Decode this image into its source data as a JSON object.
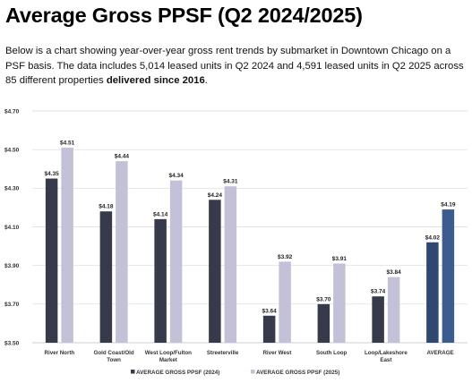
{
  "header": {
    "title": "Average Gross PPSF (Q2 2024/2025)",
    "description_main": "Below is a chart showing year-over-year gross rent trends by submarket in Downtown Chicago on a PSF basis. The data includes 5,014 leased units in Q2 2024 and 4,591 leased units in Q2 2025 across 85 different properties ",
    "description_bold": "delivered since 2016",
    "description_end": "."
  },
  "colors": {
    "series_2024": "#363a4a",
    "series_2025": "#c3c1d8",
    "average_2024": "#2e4870",
    "average_2025": "#3c5b8e",
    "gridline": "#d9d9d9"
  },
  "chart_data": {
    "type": "bar",
    "title": "",
    "xlabel": "",
    "ylabel": "",
    "ylim": [
      3.5,
      4.7
    ],
    "yticks": [
      "$3.50",
      "$3.70",
      "$3.90",
      "$4.10",
      "$4.30",
      "$4.50",
      "$4.70"
    ],
    "grid": true,
    "legend_position": "bottom",
    "categories": [
      "River North",
      "Gold Coast/Old Town",
      "West Loop/Fulton Market",
      "Streeterville",
      "River West",
      "South Loop",
      "Loop/Lakeshore East",
      "AVERAGE"
    ],
    "category_label_lines": [
      [
        "River North"
      ],
      [
        "Gold Coast/Old",
        "Town"
      ],
      [
        "West Loop/Fulton",
        "Market"
      ],
      [
        "Streeterville"
      ],
      [
        "River West"
      ],
      [
        "South Loop"
      ],
      [
        "Loop/Lakeshore",
        "East"
      ],
      [
        "AVERAGE"
      ]
    ],
    "series": [
      {
        "name": "AVERAGE GROSS PPSF (2024)",
        "values": [
          4.35,
          4.18,
          4.14,
          4.24,
          3.64,
          3.7,
          3.74,
          4.02
        ],
        "labels": [
          "$4.35",
          "$4.18",
          "$4.14",
          "$4.24",
          "$3.64",
          "$3.70",
          "$3.74",
          "$4.02"
        ]
      },
      {
        "name": "AVERAGE GROSS PPSF (2025)",
        "values": [
          4.51,
          4.44,
          4.34,
          4.31,
          3.92,
          3.91,
          3.84,
          4.19
        ],
        "labels": [
          "$4.51",
          "$4.44",
          "$4.34",
          "$4.31",
          "$3.92",
          "$3.91",
          "$3.84",
          "$4.19"
        ]
      }
    ]
  }
}
